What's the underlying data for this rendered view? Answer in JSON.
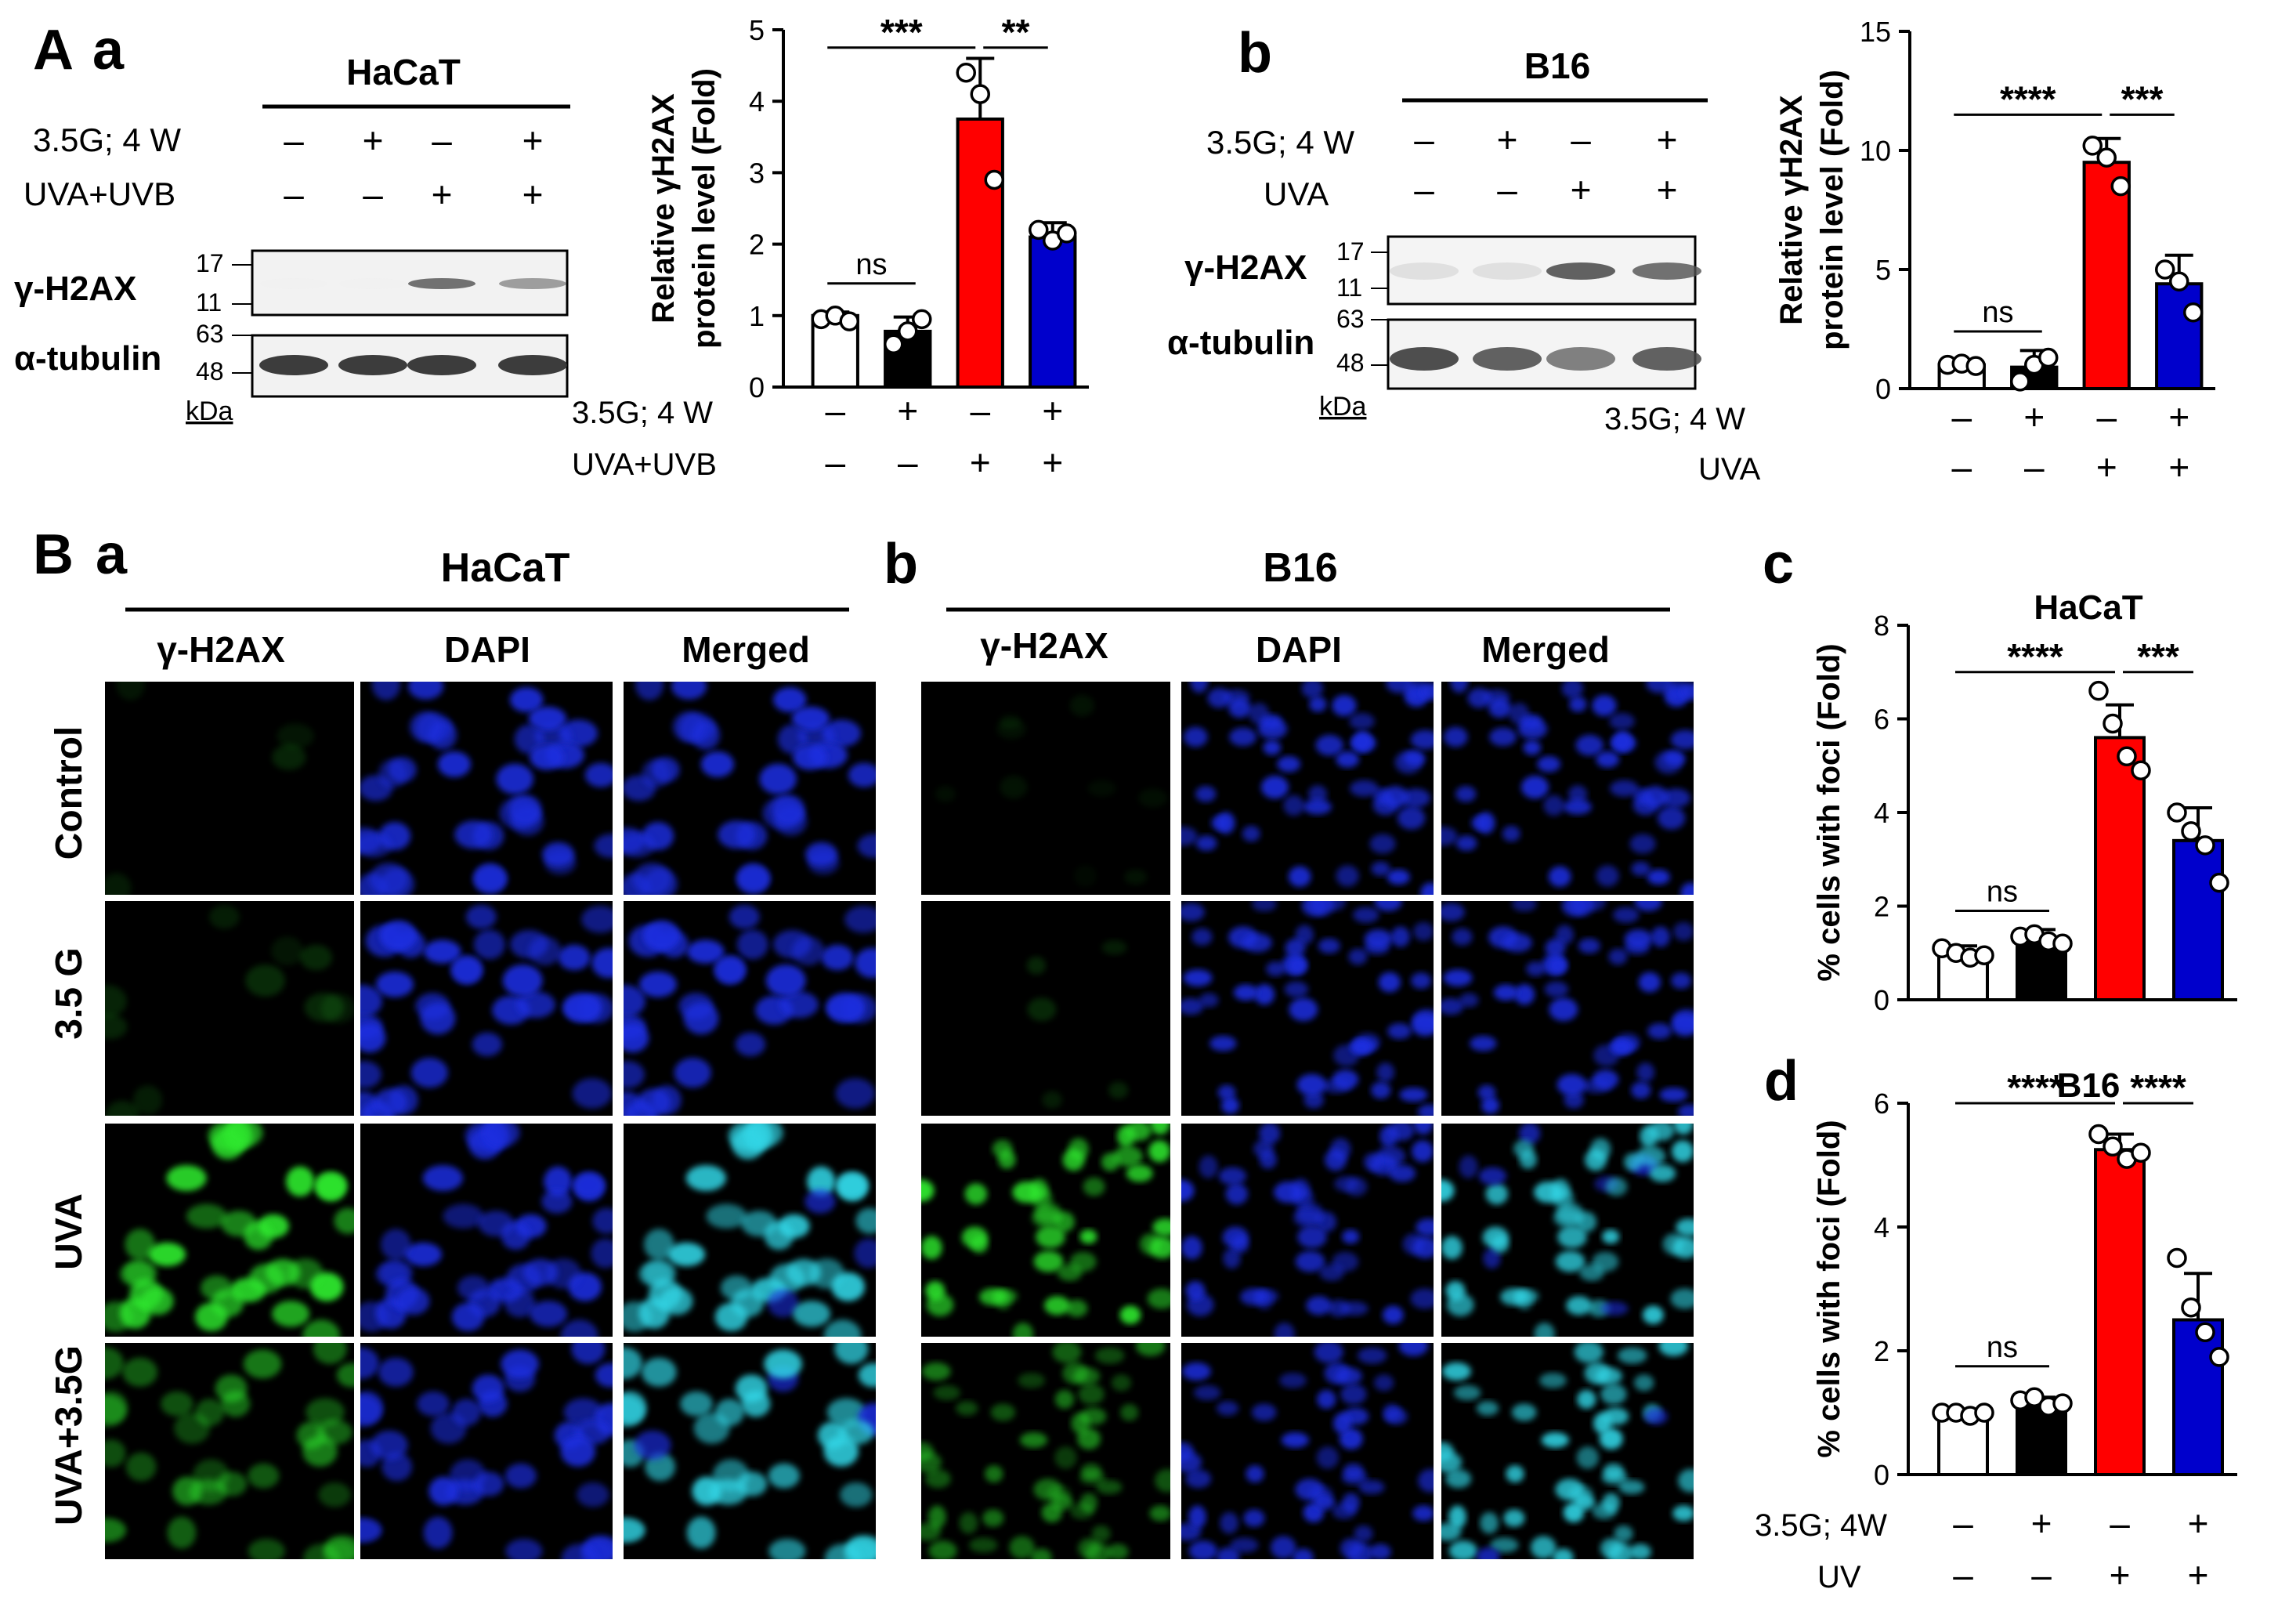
{
  "panel_labels": {
    "A": "A",
    "A_a": "a",
    "A_b": "b",
    "B": "B",
    "B_a": "a",
    "B_b": "b",
    "B_c": "c",
    "B_d": "d"
  },
  "western_a": {
    "cell_line": "HaCaT",
    "treat1_label": "3.5G; 4 W",
    "treat2_label": "UVA+UVB",
    "treat1_signs": [
      "–",
      "+",
      "–",
      "+"
    ],
    "treat2_signs": [
      "–",
      "–",
      "+",
      "+"
    ],
    "rows": [
      "γ-H2AX",
      "α-tubulin"
    ],
    "markers": [
      "17",
      "11",
      "63",
      "48"
    ],
    "unit": "kDa",
    "band_intensity": {
      "gamma_h2ax": [
        0.05,
        0.05,
        0.8,
        0.65
      ],
      "tubulin": [
        0.95,
        0.95,
        0.95,
        0.95
      ]
    }
  },
  "western_b": {
    "cell_line": "B16",
    "treat1_label": "3.5G; 4 W",
    "treat2_label": "UVA",
    "treat1_signs": [
      "–",
      "+",
      "–",
      "+"
    ],
    "treat2_signs": [
      "–",
      "–",
      "+",
      "+"
    ],
    "rows": [
      "γ-H2AX",
      "α-tubulin"
    ],
    "markers": [
      "17",
      "11",
      "63",
      "48"
    ],
    "unit": "kDa",
    "band_intensity": {
      "gamma_h2ax": [
        0.3,
        0.3,
        0.85,
        0.8
      ],
      "tubulin": [
        0.9,
        0.85,
        0.75,
        0.85
      ]
    }
  },
  "micro_a": {
    "cell_line": "HaCaT",
    "columns": [
      "γ-H2AX",
      "DAPI",
      "Merged"
    ],
    "rows": [
      "Control",
      "3.5 G",
      "UVA",
      "UVA+3.5G"
    ]
  },
  "micro_b": {
    "cell_line": "B16",
    "columns": [
      "γ-H2AX",
      "DAPI",
      "Merged"
    ]
  },
  "colors": {
    "bar_fills": [
      "#ffffff",
      "#000000",
      "#ff0000",
      "#0000cc"
    ],
    "green_foci": "#2ee82e",
    "dapi_blue": "#1a2fe0",
    "merged_cyan": "#33d6e6"
  },
  "chart_data": [
    {
      "id": "Aa",
      "type": "bar",
      "title": "",
      "ylabel": "Relative γH2AX protein level (Fold)",
      "ylabel_lines": [
        "Relative γH2AX",
        "protein level (Fold)"
      ],
      "ylim": [
        0,
        5
      ],
      "yticks": [
        0,
        1,
        2,
        3,
        4,
        5
      ],
      "values": [
        1.0,
        0.78,
        3.75,
        2.1
      ],
      "errors": [
        0.05,
        0.2,
        0.85,
        0.2
      ],
      "points": [
        [
          0.95,
          1.0,
          0.92
        ],
        [
          0.6,
          0.78,
          0.95
        ],
        [
          4.4,
          4.1,
          2.9
        ],
        [
          2.2,
          2.05,
          2.15
        ]
      ],
      "treat1_label": "3.5G; 4 W",
      "treat2_label": "UVA+UVB",
      "treat1_signs": [
        "–",
        "+",
        "–",
        "+"
      ],
      "treat2_signs": [
        "–",
        "–",
        "+",
        "+"
      ],
      "significance": [
        {
          "from": 0,
          "to": 1,
          "label": "ns",
          "level": 1.45
        },
        {
          "from": 0,
          "to": 2,
          "label": "***",
          "level": 4.75
        },
        {
          "from": 2,
          "to": 3,
          "label": "**",
          "level": 4.75
        }
      ]
    },
    {
      "id": "Ab",
      "type": "bar",
      "title": "",
      "ylabel": "Relative γH2AX protein level (Fold)",
      "ylabel_lines": [
        "Relative γH2AX",
        "protein level (Fold)"
      ],
      "ylim": [
        0,
        15
      ],
      "yticks": [
        0,
        5,
        10,
        15
      ],
      "values": [
        1.0,
        0.9,
        9.5,
        4.4
      ],
      "errors": [
        0.1,
        0.7,
        1.0,
        1.2
      ],
      "points": [
        [
          1.0,
          1.05,
          0.95
        ],
        [
          0.3,
          1.0,
          1.3
        ],
        [
          10.2,
          9.7,
          8.5
        ],
        [
          5.0,
          4.5,
          3.2
        ]
      ],
      "treat1_label": "3.5G; 4 W",
      "treat2_label": "UVA",
      "treat1_signs": [
        "–",
        "+",
        "–",
        "+"
      ],
      "treat2_signs": [
        "–",
        "–",
        "+",
        "+"
      ],
      "significance": [
        {
          "from": 0,
          "to": 1,
          "label": "ns",
          "level": 2.4
        },
        {
          "from": 0,
          "to": 2,
          "label": "****",
          "level": 11.5
        },
        {
          "from": 2,
          "to": 3,
          "label": "***",
          "level": 11.5
        }
      ]
    },
    {
      "id": "Bc",
      "type": "bar",
      "title": "HaCaT",
      "ylabel": "% cells with foci (Fold)",
      "ylim": [
        0,
        8
      ],
      "yticks": [
        0,
        2,
        4,
        6,
        8
      ],
      "values": [
        1.0,
        1.3,
        5.6,
        3.4
      ],
      "errors": [
        0.15,
        0.2,
        0.7,
        0.7
      ],
      "points": [
        [
          1.1,
          1.0,
          0.9,
          0.95
        ],
        [
          1.35,
          1.4,
          1.25,
          1.2
        ],
        [
          6.6,
          5.9,
          5.2,
          4.9
        ],
        [
          4.0,
          3.6,
          3.3,
          2.5
        ]
      ],
      "significance": [
        {
          "from": 0,
          "to": 1,
          "label": "ns",
          "level": 1.9
        },
        {
          "from": 0,
          "to": 2,
          "label": "****",
          "level": 7.0
        },
        {
          "from": 2,
          "to": 3,
          "label": "***",
          "level": 7.0
        }
      ]
    },
    {
      "id": "Bd",
      "type": "bar",
      "title": "B16",
      "ylabel": "% cells with foci (Fold)",
      "ylim": [
        0,
        6
      ],
      "yticks": [
        0,
        2,
        4,
        6
      ],
      "values": [
        1.0,
        1.15,
        5.25,
        2.5
      ],
      "errors": [
        0.05,
        0.1,
        0.25,
        0.75
      ],
      "points": [
        [
          1.0,
          1.0,
          0.95,
          1.0
        ],
        [
          1.2,
          1.25,
          1.1,
          1.15
        ],
        [
          5.5,
          5.3,
          5.1,
          5.2
        ],
        [
          3.5,
          2.7,
          2.3,
          1.9
        ]
      ],
      "treat1_label": "3.5G; 4W",
      "treat2_label": "UV",
      "treat1_signs": [
        "–",
        "+",
        "–",
        "+"
      ],
      "treat2_signs": [
        "–",
        "–",
        "+",
        "+"
      ],
      "significance": [
        {
          "from": 0,
          "to": 1,
          "label": "ns",
          "level": 1.75
        },
        {
          "from": 0,
          "to": 2,
          "label": "****",
          "level": 6.0
        },
        {
          "from": 2,
          "to": 3,
          "label": "****",
          "level": 6.0
        }
      ]
    }
  ]
}
